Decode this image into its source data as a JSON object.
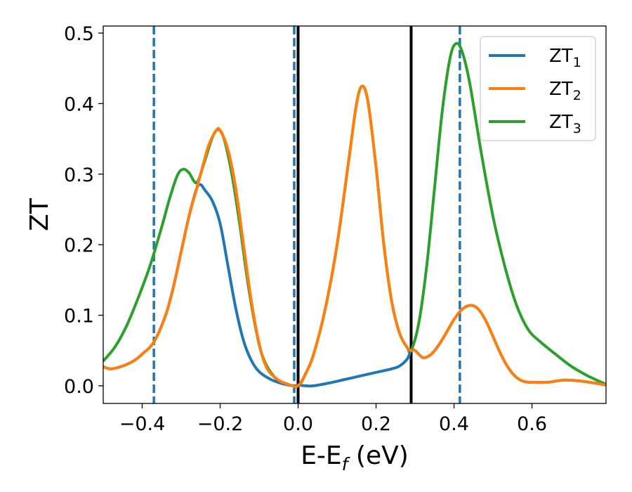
{
  "chart_data": {
    "type": "line",
    "xlabel": "E-E_f (eV)",
    "xlabel_parts": {
      "main": "E-E",
      "sub": "f",
      "rest": " (eV)"
    },
    "ylabel": "ZT",
    "xlim": [
      -0.5,
      0.79
    ],
    "ylim": [
      -0.025,
      0.51
    ],
    "x_ticks": [
      -0.4,
      -0.2,
      0.0,
      0.2,
      0.4,
      0.6
    ],
    "x_tick_labels": [
      "−0.4",
      "−0.2",
      "0.0",
      "0.2",
      "0.4",
      "0.6"
    ],
    "y_ticks": [
      0.0,
      0.1,
      0.2,
      0.3,
      0.4,
      0.5
    ],
    "y_tick_labels": [
      "0.0",
      "0.1",
      "0.2",
      "0.3",
      "0.4",
      "0.5"
    ],
    "grid": false,
    "legend_position": "top-right",
    "vertical_lines": [
      {
        "x": -0.37,
        "style": "dashed",
        "color": "#1f77b4"
      },
      {
        "x": -0.01,
        "style": "dashed",
        "color": "#1f77b4"
      },
      {
        "x": 0.0,
        "style": "solid",
        "color": "#000000"
      },
      {
        "x": 0.29,
        "style": "solid",
        "color": "#000000"
      },
      {
        "x": 0.415,
        "style": "dashed",
        "color": "#1f77b4"
      }
    ],
    "series": [
      {
        "name": "ZT_1",
        "label_main": "ZT",
        "label_sub": "1",
        "color": "#1f77b4",
        "points": [
          [
            -0.5,
            0.027
          ],
          [
            -0.48,
            0.024
          ],
          [
            -0.45,
            0.028
          ],
          [
            -0.42,
            0.036
          ],
          [
            -0.4,
            0.045
          ],
          [
            -0.37,
            0.062
          ],
          [
            -0.34,
            0.1
          ],
          [
            -0.32,
            0.14
          ],
          [
            -0.3,
            0.19
          ],
          [
            -0.28,
            0.24
          ],
          [
            -0.26,
            0.28
          ],
          [
            -0.25,
            0.285
          ],
          [
            -0.24,
            0.278
          ],
          [
            -0.22,
            0.262
          ],
          [
            -0.2,
            0.23
          ],
          [
            -0.18,
            0.17
          ],
          [
            -0.16,
            0.11
          ],
          [
            -0.14,
            0.064
          ],
          [
            -0.12,
            0.036
          ],
          [
            -0.1,
            0.02
          ],
          [
            -0.07,
            0.009
          ],
          [
            -0.04,
            0.003
          ],
          [
            -0.01,
            0.0
          ],
          [
            0.0,
            0.001
          ],
          [
            0.02,
            0.0
          ],
          [
            0.04,
            0.0
          ],
          [
            0.08,
            0.004
          ],
          [
            0.12,
            0.009
          ],
          [
            0.16,
            0.014
          ],
          [
            0.2,
            0.019
          ],
          [
            0.24,
            0.024
          ],
          [
            0.26,
            0.028
          ],
          [
            0.28,
            0.038
          ],
          [
            0.29,
            0.05
          ],
          [
            0.3,
            0.05
          ],
          [
            0.32,
            0.04
          ],
          [
            0.34,
            0.044
          ],
          [
            0.36,
            0.057
          ],
          [
            0.38,
            0.075
          ],
          [
            0.4,
            0.094
          ],
          [
            0.42,
            0.108
          ],
          [
            0.44,
            0.114
          ],
          [
            0.46,
            0.11
          ],
          [
            0.48,
            0.094
          ],
          [
            0.5,
            0.07
          ],
          [
            0.52,
            0.045
          ],
          [
            0.54,
            0.025
          ],
          [
            0.56,
            0.012
          ],
          [
            0.58,
            0.006
          ],
          [
            0.6,
            0.005
          ],
          [
            0.64,
            0.005
          ],
          [
            0.68,
            0.008
          ],
          [
            0.72,
            0.007
          ],
          [
            0.76,
            0.004
          ],
          [
            0.79,
            0.001
          ]
        ]
      },
      {
        "name": "ZT_2",
        "label_main": "ZT",
        "label_sub": "2",
        "color": "#ff7f0e",
        "points": [
          [
            -0.5,
            0.027
          ],
          [
            -0.48,
            0.024
          ],
          [
            -0.45,
            0.028
          ],
          [
            -0.42,
            0.036
          ],
          [
            -0.4,
            0.045
          ],
          [
            -0.37,
            0.062
          ],
          [
            -0.34,
            0.1
          ],
          [
            -0.32,
            0.14
          ],
          [
            -0.3,
            0.19
          ],
          [
            -0.28,
            0.24
          ],
          [
            -0.26,
            0.28
          ],
          [
            -0.25,
            0.3
          ],
          [
            -0.23,
            0.34
          ],
          [
            -0.21,
            0.362
          ],
          [
            -0.2,
            0.362
          ],
          [
            -0.18,
            0.335
          ],
          [
            -0.16,
            0.28
          ],
          [
            -0.14,
            0.2
          ],
          [
            -0.12,
            0.12
          ],
          [
            -0.1,
            0.06
          ],
          [
            -0.08,
            0.025
          ],
          [
            -0.05,
            0.008
          ],
          [
            -0.02,
            0.001
          ],
          [
            0.0,
            0.0
          ],
          [
            0.02,
            0.018
          ],
          [
            0.04,
            0.045
          ],
          [
            0.07,
            0.11
          ],
          [
            0.1,
            0.2
          ],
          [
            0.13,
            0.32
          ],
          [
            0.15,
            0.4
          ],
          [
            0.165,
            0.425
          ],
          [
            0.18,
            0.4
          ],
          [
            0.2,
            0.31
          ],
          [
            0.22,
            0.2
          ],
          [
            0.24,
            0.12
          ],
          [
            0.26,
            0.075
          ],
          [
            0.28,
            0.054
          ],
          [
            0.29,
            0.05
          ],
          [
            0.3,
            0.05
          ],
          [
            0.32,
            0.04
          ],
          [
            0.34,
            0.044
          ],
          [
            0.36,
            0.057
          ],
          [
            0.38,
            0.075
          ],
          [
            0.4,
            0.094
          ],
          [
            0.42,
            0.108
          ],
          [
            0.44,
            0.114
          ],
          [
            0.46,
            0.11
          ],
          [
            0.48,
            0.094
          ],
          [
            0.5,
            0.07
          ],
          [
            0.52,
            0.045
          ],
          [
            0.54,
            0.025
          ],
          [
            0.56,
            0.012
          ],
          [
            0.58,
            0.006
          ],
          [
            0.6,
            0.005
          ],
          [
            0.64,
            0.005
          ],
          [
            0.68,
            0.008
          ],
          [
            0.72,
            0.007
          ],
          [
            0.76,
            0.004
          ],
          [
            0.79,
            0.001
          ]
        ]
      },
      {
        "name": "ZT_3",
        "label_main": "ZT",
        "label_sub": "3",
        "color": "#2ca02c",
        "points": [
          [
            -0.5,
            0.035
          ],
          [
            -0.47,
            0.055
          ],
          [
            -0.44,
            0.085
          ],
          [
            -0.41,
            0.125
          ],
          [
            -0.38,
            0.17
          ],
          [
            -0.35,
            0.225
          ],
          [
            -0.33,
            0.265
          ],
          [
            -0.31,
            0.298
          ],
          [
            -0.295,
            0.307
          ],
          [
            -0.28,
            0.302
          ],
          [
            -0.26,
            0.288
          ],
          [
            -0.24,
            0.318
          ],
          [
            -0.22,
            0.352
          ],
          [
            -0.205,
            0.363
          ],
          [
            -0.19,
            0.35
          ],
          [
            -0.17,
            0.3
          ],
          [
            -0.15,
            0.23
          ],
          [
            -0.13,
            0.15
          ],
          [
            -0.11,
            0.085
          ],
          [
            -0.09,
            0.04
          ],
          [
            -0.06,
            0.012
          ],
          [
            -0.03,
            0.003
          ],
          [
            0.0,
            0.0
          ],
          [
            0.02,
            0.018
          ],
          [
            0.04,
            0.045
          ],
          [
            0.07,
            0.11
          ],
          [
            0.1,
            0.2
          ],
          [
            0.13,
            0.32
          ],
          [
            0.15,
            0.4
          ],
          [
            0.165,
            0.425
          ],
          [
            0.18,
            0.4
          ],
          [
            0.2,
            0.31
          ],
          [
            0.22,
            0.2
          ],
          [
            0.24,
            0.12
          ],
          [
            0.26,
            0.075
          ],
          [
            0.28,
            0.054
          ],
          [
            0.29,
            0.05
          ],
          [
            0.31,
            0.09
          ],
          [
            0.33,
            0.17
          ],
          [
            0.35,
            0.28
          ],
          [
            0.37,
            0.39
          ],
          [
            0.39,
            0.465
          ],
          [
            0.405,
            0.485
          ],
          [
            0.42,
            0.475
          ],
          [
            0.44,
            0.43
          ],
          [
            0.47,
            0.33
          ],
          [
            0.5,
            0.24
          ],
          [
            0.53,
            0.17
          ],
          [
            0.56,
            0.115
          ],
          [
            0.59,
            0.08
          ],
          [
            0.62,
            0.063
          ],
          [
            0.66,
            0.045
          ],
          [
            0.7,
            0.028
          ],
          [
            0.74,
            0.015
          ],
          [
            0.79,
            0.002
          ]
        ]
      }
    ]
  }
}
